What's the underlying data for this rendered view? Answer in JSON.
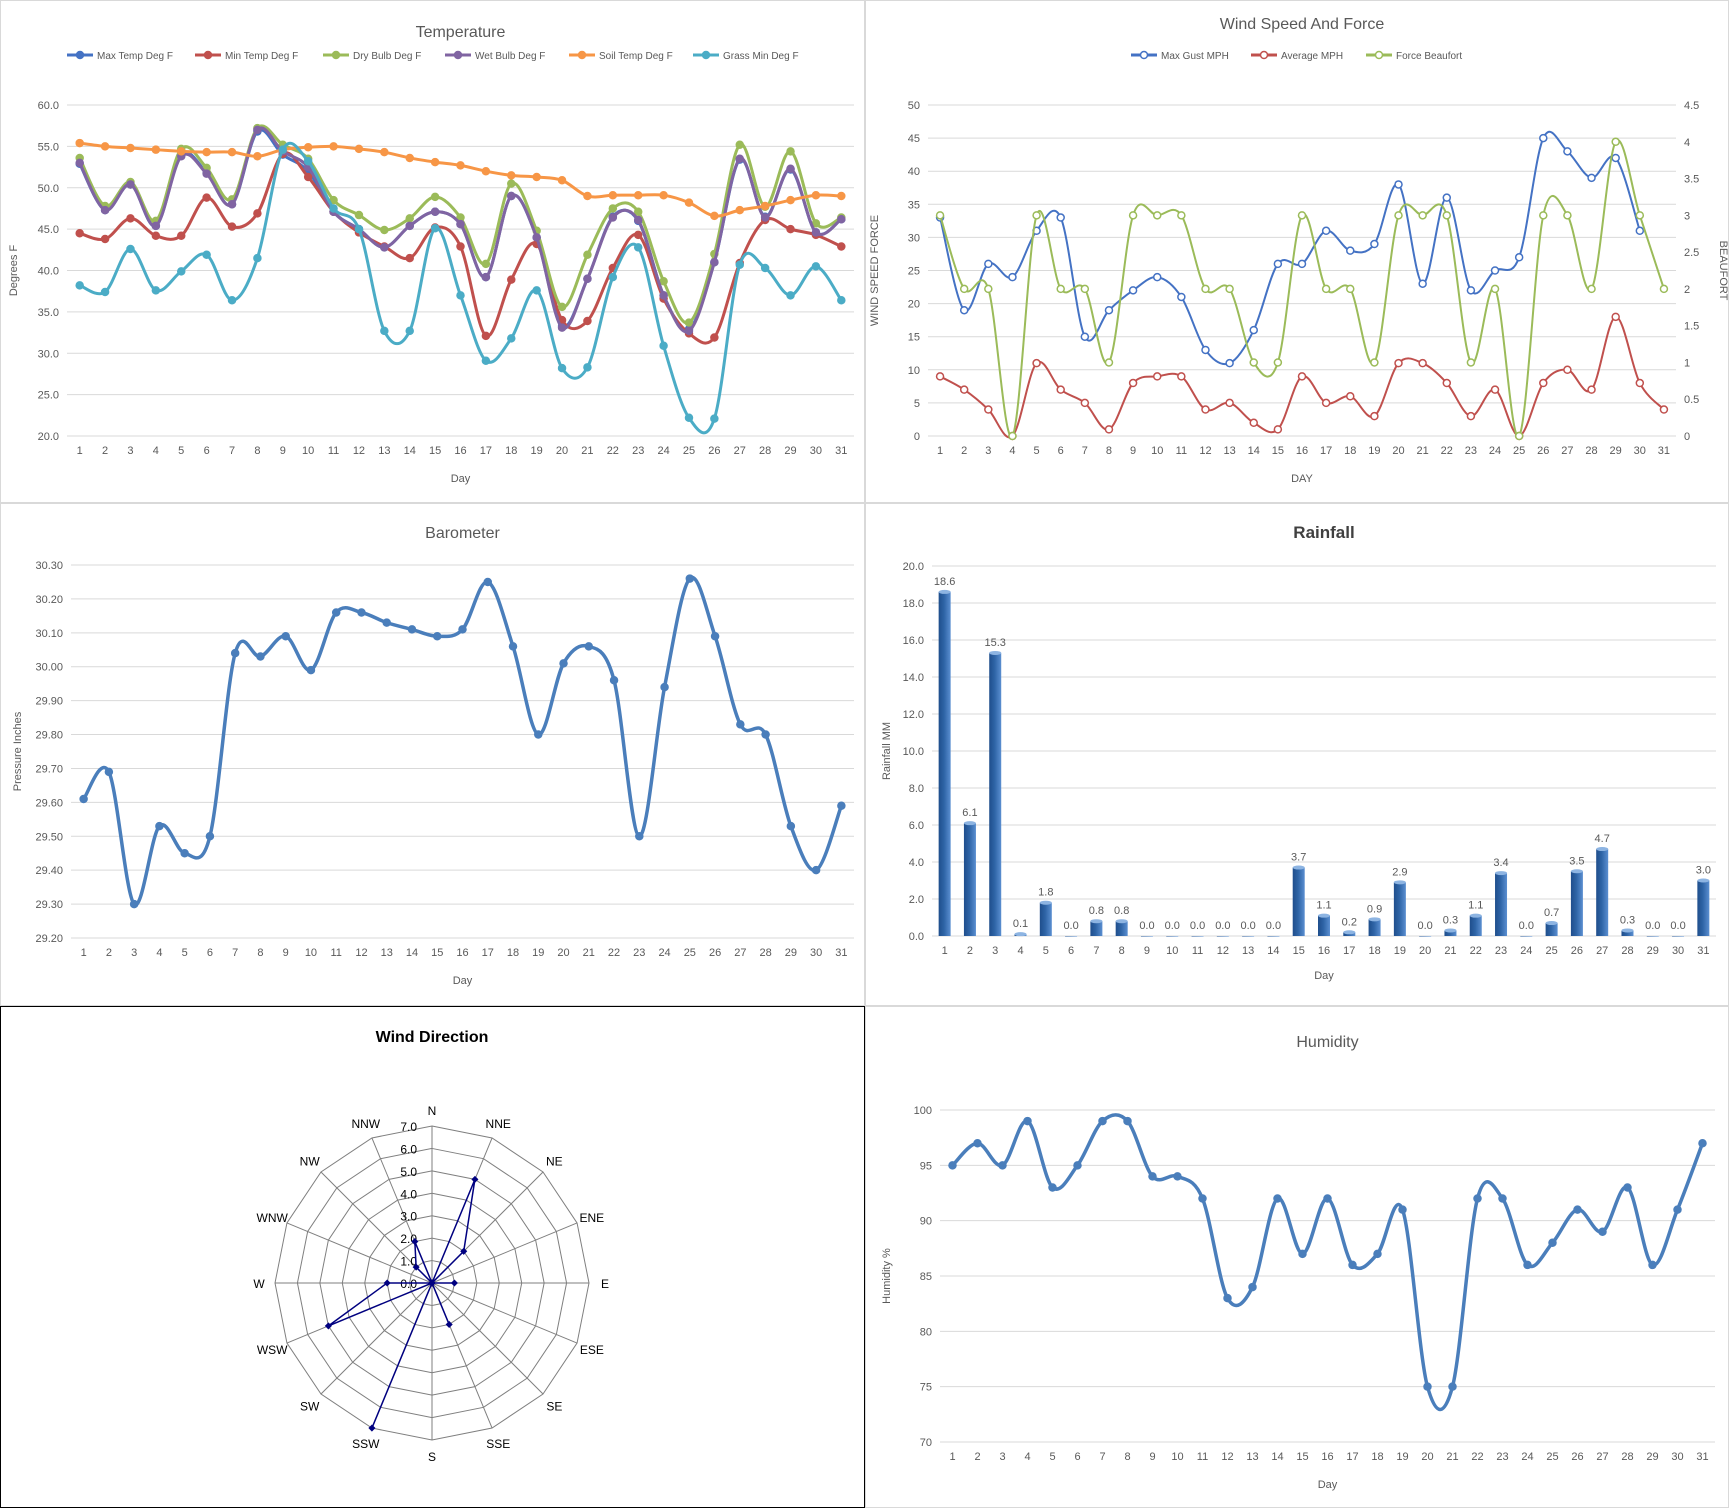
{
  "chart_data": [
    {
      "id": "temp",
      "type": "line",
      "title": "Temperature",
      "xlabel": "Day",
      "ylabel": "Degrees F",
      "ylim": [
        20,
        60
      ],
      "yticks": [
        "20.0",
        "25.0",
        "30.0",
        "35.0",
        "40.0",
        "45.0",
        "50.0",
        "55.0",
        "60.0"
      ],
      "x": [
        1,
        2,
        3,
        4,
        5,
        6,
        7,
        8,
        9,
        10,
        11,
        12,
        13,
        14,
        15,
        16,
        17,
        18,
        19,
        20,
        21,
        22,
        23,
        24,
        25,
        26,
        27,
        28,
        29,
        30,
        31
      ],
      "grid": true,
      "legend": "top",
      "series": [
        {
          "name": "Max Temp Deg F",
          "color": "#4472c4",
          "values": [
            52.9,
            47.3,
            50.4,
            45.4,
            54.0,
            51.8,
            48.0,
            56.8,
            54.0,
            52.0,
            47.1,
            45.0,
            42.8,
            45.4,
            47.1,
            45.6,
            39.2,
            49.0,
            44.0,
            33.3,
            39.0,
            46.5,
            46.0,
            37.0,
            32.9,
            41.0,
            53.4,
            46.5,
            52.2,
            44.6,
            46.2
          ]
        },
        {
          "name": "Min Temp Deg F",
          "color": "#c0504d",
          "values": [
            44.5,
            43.8,
            46.3,
            44.2,
            44.2,
            48.8,
            45.3,
            46.9,
            54.1,
            51.3,
            47.1,
            44.6,
            42.9,
            41.5,
            45.2,
            42.9,
            32.1,
            38.9,
            43.2,
            34.0,
            33.9,
            40.3,
            44.3,
            36.6,
            32.4,
            31.9,
            40.9,
            46.1,
            45.0,
            44.3,
            42.9
          ]
        },
        {
          "name": "Dry Bulb Deg F",
          "color": "#9bbb59",
          "values": [
            53.6,
            47.8,
            50.7,
            46.0,
            54.7,
            52.4,
            48.6,
            57.2,
            55.2,
            53.5,
            48.5,
            46.7,
            44.9,
            46.3,
            48.9,
            46.4,
            40.8,
            50.5,
            44.8,
            35.6,
            41.9,
            47.5,
            47.1,
            38.7,
            33.7,
            42.0,
            55.2,
            47.7,
            54.4,
            45.7,
            46.4
          ]
        },
        {
          "name": "Wet Bulb Deg F",
          "color": "#8064a2",
          "values": [
            53.0,
            47.3,
            50.4,
            45.4,
            53.8,
            51.7,
            48.0,
            57.0,
            54.4,
            52.5,
            47.1,
            45.0,
            42.8,
            45.4,
            47.1,
            45.6,
            39.2,
            49.0,
            44.0,
            33.1,
            39.0,
            46.4,
            46.1,
            37.0,
            32.7,
            41.0,
            53.5,
            46.4,
            52.3,
            44.6,
            46.2
          ]
        },
        {
          "name": "Soil Temp Deg F",
          "color": "#f79646",
          "values": [
            55.4,
            55.0,
            54.8,
            54.6,
            54.4,
            54.3,
            54.3,
            53.8,
            54.6,
            54.9,
            55.0,
            54.7,
            54.3,
            53.6,
            53.1,
            52.7,
            52.0,
            51.5,
            51.3,
            50.9,
            49.0,
            49.1,
            49.1,
            49.1,
            48.2,
            46.6,
            47.3,
            47.8,
            48.5,
            49.1,
            49.0
          ]
        },
        {
          "name": "Grass Min Deg F",
          "color": "#4bacc6",
          "values": [
            38.2,
            37.4,
            42.6,
            37.6,
            39.9,
            41.9,
            36.4,
            41.5,
            54.6,
            53.2,
            47.5,
            45.0,
            32.7,
            32.7,
            45.1,
            37.0,
            29.1,
            31.8,
            37.6,
            28.2,
            28.3,
            39.2,
            42.8,
            30.9,
            22.2,
            22.1,
            40.7,
            40.3,
            37.0,
            40.5,
            36.4
          ]
        }
      ]
    },
    {
      "id": "wind",
      "type": "line",
      "title": "Wind Speed And Force",
      "xlabel": "DAY",
      "ylabel": "WIND SPEED FORCE",
      "y2label": "BEAUFORT",
      "ylim": [
        0,
        50
      ],
      "y2lim": [
        0,
        4.5
      ],
      "yticks": [
        "0",
        "5",
        "10",
        "15",
        "20",
        "25",
        "30",
        "35",
        "40",
        "45",
        "50"
      ],
      "y2ticks": [
        "0",
        "0.5",
        "1",
        "1.5",
        "2",
        "2.5",
        "3",
        "3.5",
        "4",
        "4.5"
      ],
      "x": [
        1,
        2,
        3,
        4,
        5,
        6,
        7,
        8,
        9,
        10,
        11,
        12,
        13,
        14,
        15,
        16,
        17,
        18,
        19,
        20,
        21,
        22,
        23,
        24,
        25,
        26,
        27,
        28,
        29,
        30,
        31
      ],
      "grid": true,
      "legend": "top",
      "series": [
        {
          "name": "Max Gust MPH",
          "color": "#4472c4",
          "axis": "left",
          "values": [
            33,
            19,
            26,
            24,
            31,
            33,
            15,
            19,
            22,
            24,
            21,
            13,
            11,
            16,
            26,
            26,
            31,
            28,
            29,
            38,
            23,
            36,
            22,
            25,
            27,
            45,
            43,
            39,
            42,
            31,
            null
          ]
        },
        {
          "name": "Average MPH",
          "color": "#c0504d",
          "axis": "left",
          "values": [
            9,
            7,
            4,
            0,
            11,
            7,
            5,
            1,
            8,
            9,
            9,
            4,
            5,
            2,
            1,
            9,
            5,
            6,
            3,
            11,
            11,
            8,
            3,
            7,
            0,
            8,
            10,
            7,
            18,
            8,
            4
          ]
        },
        {
          "name": "Force Beaufort",
          "color": "#9bbb59",
          "axis": "right",
          "values": [
            3,
            2,
            2,
            0,
            3,
            2,
            2,
            1,
            3,
            3,
            3,
            2,
            2,
            1,
            1,
            3,
            2,
            2,
            1,
            3,
            3,
            3,
            1,
            2,
            0,
            3,
            3,
            2,
            4,
            3,
            2
          ]
        }
      ]
    },
    {
      "id": "baro",
      "type": "line",
      "title": "Barometer",
      "xlabel": "Day",
      "ylabel": "Pressure Inches",
      "ylim": [
        29.2,
        30.3
      ],
      "yticks": [
        "29.20",
        "29.30",
        "29.40",
        "29.50",
        "29.60",
        "29.70",
        "29.80",
        "29.90",
        "30.00",
        "30.10",
        "30.20",
        "30.30"
      ],
      "x": [
        1,
        2,
        3,
        4,
        5,
        6,
        7,
        8,
        9,
        10,
        11,
        12,
        13,
        14,
        15,
        16,
        17,
        18,
        19,
        20,
        21,
        22,
        23,
        24,
        25,
        26,
        27,
        28,
        29,
        30,
        31
      ],
      "grid": true,
      "series": [
        {
          "name": "",
          "color": "#4a7ebb",
          "values": [
            29.61,
            29.69,
            29.3,
            29.53,
            29.45,
            29.5,
            30.04,
            30.03,
            30.09,
            29.99,
            30.16,
            30.16,
            30.13,
            30.11,
            30.09,
            30.11,
            30.25,
            30.06,
            29.8,
            30.01,
            30.06,
            29.96,
            29.5,
            29.94,
            30.26,
            30.09,
            29.83,
            29.8,
            29.53,
            29.4,
            29.59
          ]
        }
      ]
    },
    {
      "id": "rain",
      "type": "bar",
      "title": "Rainfall",
      "xlabel": "Day",
      "ylabel": "Rainfall MM",
      "ylim": [
        0,
        20
      ],
      "yticks": [
        "0.0",
        "2.0",
        "4.0",
        "6.0",
        "8.0",
        "10.0",
        "12.0",
        "14.0",
        "16.0",
        "18.0",
        "20.0"
      ],
      "categories": [
        "1",
        "2",
        "3",
        "4",
        "5",
        "6",
        "7",
        "8",
        "9",
        "10",
        "11",
        "12",
        "13",
        "14",
        "15",
        "16",
        "17",
        "18",
        "19",
        "20",
        "21",
        "22",
        "23",
        "24",
        "25",
        "26",
        "27",
        "28",
        "29",
        "30",
        "31"
      ],
      "values": [
        18.6,
        6.1,
        15.3,
        0.1,
        1.8,
        0.0,
        0.8,
        0.8,
        0.0,
        0.0,
        0.0,
        0.0,
        0.0,
        0.0,
        3.7,
        1.1,
        0.2,
        0.9,
        2.9,
        0.0,
        0.3,
        1.1,
        3.4,
        0.0,
        0.7,
        3.5,
        4.7,
        0.3,
        0.0,
        0.0,
        3.0
      ],
      "labels": [
        "18.6",
        "6.1",
        "15.3",
        "0.1",
        "1.8",
        "0.0",
        "0.8",
        "0.8",
        "0.0",
        "0.0",
        "0.0",
        "0.0",
        "0.0",
        "0.0",
        "3.7",
        "1.1",
        "0.2",
        "0.9",
        "2.9",
        "0.0",
        "0.3",
        "1.1",
        "3.4",
        "0.0",
        "0.7",
        "3.5",
        "4.7",
        "0.3",
        "0.0",
        "0.0",
        "3.0"
      ],
      "grid": true,
      "color": "#2e64a6"
    },
    {
      "id": "dir",
      "type": "radar",
      "title": "Wind Direction",
      "rlim": [
        0,
        7
      ],
      "rticks": [
        "0.0",
        "1.0",
        "2.0",
        "3.0",
        "4.0",
        "5.0",
        "6.0",
        "7.0"
      ],
      "categories": [
        "N",
        "NNE",
        "NE",
        "ENE",
        "E",
        "ESE",
        "SE",
        "SSE",
        "S",
        "SSW",
        "SW",
        "WSW",
        "W",
        "WNW",
        "NW",
        "NNW"
      ],
      "values": [
        0,
        5,
        2,
        0,
        1,
        0,
        0,
        2,
        0,
        7,
        0,
        5,
        2,
        0,
        1,
        2
      ],
      "color": "#000080"
    },
    {
      "id": "hum",
      "type": "line",
      "title": "Humidity",
      "xlabel": "Day",
      "ylabel": "Humidity %",
      "ylim": [
        70,
        100
      ],
      "yticks": [
        "70",
        "75",
        "80",
        "85",
        "90",
        "95",
        "100"
      ],
      "x": [
        1,
        2,
        3,
        4,
        5,
        6,
        7,
        8,
        9,
        10,
        11,
        12,
        13,
        14,
        15,
        16,
        17,
        18,
        19,
        20,
        21,
        22,
        23,
        24,
        25,
        26,
        27,
        28,
        29,
        30,
        31
      ],
      "grid": true,
      "series": [
        {
          "name": "",
          "color": "#4a7ebb",
          "values": [
            95,
            97,
            95,
            99,
            93,
            95,
            99,
            99,
            94,
            94,
            92,
            83,
            84,
            92,
            87,
            92,
            86,
            87,
            91,
            75,
            75,
            92,
            92,
            86,
            88,
            91,
            89,
            93,
            86,
            91,
            97
          ]
        }
      ]
    }
  ]
}
